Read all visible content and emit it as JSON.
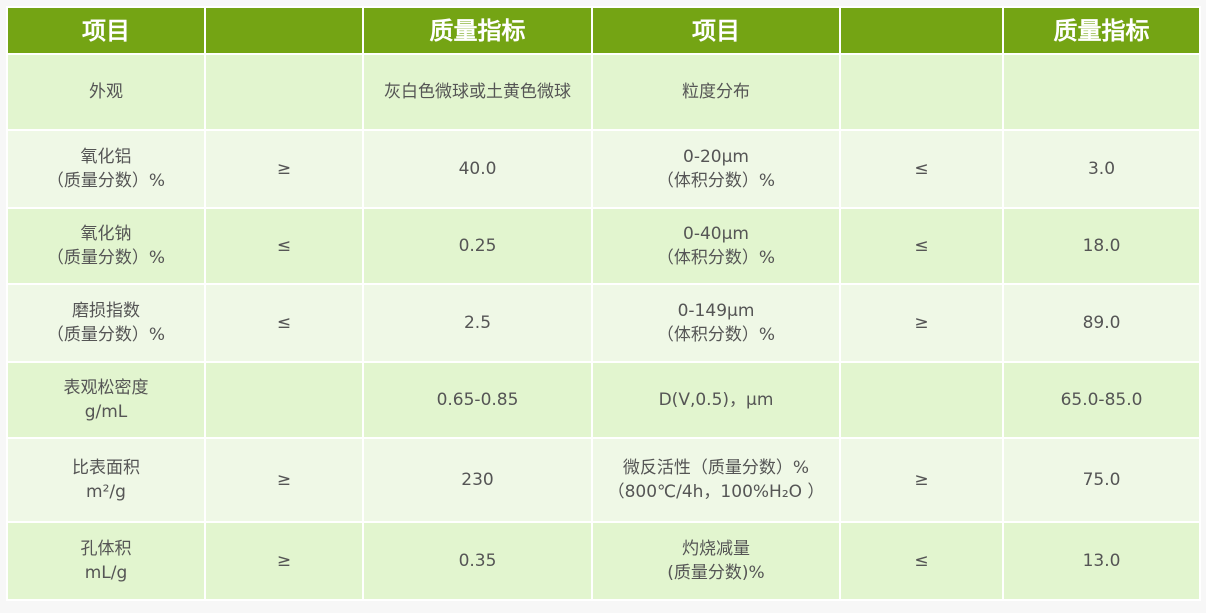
{
  "colors": {
    "header": "#74a414",
    "row_odd": "#e2f5cf",
    "row_even": "#eff8e6",
    "text": "#555555"
  },
  "header": [
    "项目",
    "",
    "质量指标",
    "项目",
    "",
    "质量指标"
  ],
  "rows": [
    {
      "item1": [
        "外观"
      ],
      "op1": "",
      "val1": "灰白色微球或土黄色微球",
      "item2": [
        "粒度分布"
      ],
      "op2": "",
      "val2": ""
    },
    {
      "item1": [
        "氧化铝",
        "（质量分数）%"
      ],
      "op1": "≥",
      "val1": "40.0",
      "item2": [
        "0-20μm",
        "（体积分数）%"
      ],
      "op2": "≤",
      "val2": "3.0"
    },
    {
      "item1": [
        "氧化钠",
        "（质量分数）%"
      ],
      "op1": "≤",
      "val1": "0.25",
      "item2": [
        "0-40μm",
        "（体积分数）%"
      ],
      "op2": "≤",
      "val2": "18.0"
    },
    {
      "item1": [
        "磨损指数",
        "（质量分数）%"
      ],
      "op1": "≤",
      "val1": "2.5",
      "item2": [
        "0-149μm",
        "（体积分数）%"
      ],
      "op2": "≥",
      "val2": "89.0"
    },
    {
      "item1": [
        "表观松密度",
        "g/mL"
      ],
      "op1": "",
      "val1": "0.65-0.85",
      "item2": [
        "D(V,0.5)，μm"
      ],
      "op2": "",
      "val2": "65.0-85.0"
    },
    {
      "item1": [
        "比表面积",
        "m²/g"
      ],
      "op1": "≥",
      "val1": "230",
      "item2": [
        "微反活性（质量分数）%",
        "（800℃/4h，100%H₂O ）"
      ],
      "op2": "≥",
      "val2": "75.0"
    },
    {
      "item1": [
        "孔体积",
        "mL/g"
      ],
      "op1": "≥",
      "val1": "0.35",
      "item2": [
        "灼烧减量",
        "(质量分数)%"
      ],
      "op2": "≤",
      "val2": "13.0"
    }
  ]
}
